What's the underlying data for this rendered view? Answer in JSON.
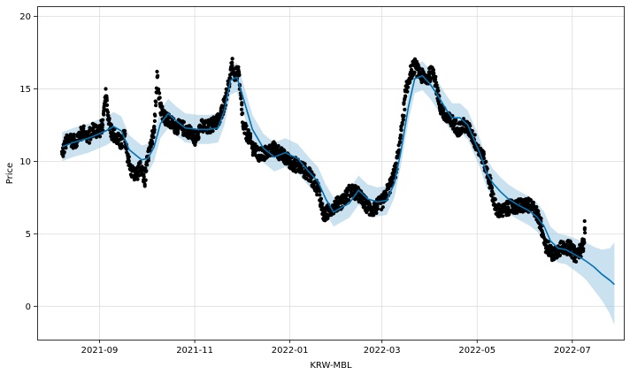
{
  "chart_data": {
    "type": "line",
    "xlabel": "KRW-MBL",
    "ylabel": "Price",
    "xlim": [
      "2021-07-23",
      "2022-08-03"
    ],
    "ylim": [
      -2.3,
      20.7
    ],
    "grid": true,
    "x_ticks": [
      {
        "date": "2021-09-01",
        "label": "2021-09"
      },
      {
        "date": "2021-11-01",
        "label": "2021-11"
      },
      {
        "date": "2022-01-01",
        "label": "2022-01"
      },
      {
        "date": "2022-03-01",
        "label": "2022-03"
      },
      {
        "date": "2022-05-01",
        "label": "2022-05"
      },
      {
        "date": "2022-07-01",
        "label": "2022-07"
      }
    ],
    "y_ticks": [
      0,
      5,
      10,
      15,
      20
    ],
    "colors": {
      "forecast": "#0072B2",
      "band": "#9ec9e2",
      "actual": "#000000",
      "grid": "#dddddd"
    },
    "series": [
      {
        "role": "actual",
        "marker": "dot",
        "x": [
          "2021-08-08",
          "2021-08-10",
          "2021-08-13",
          "2021-08-16",
          "2021-08-19",
          "2021-08-22",
          "2021-08-25",
          "2021-08-28",
          "2021-08-31",
          "2021-09-03",
          "2021-09-05",
          "2021-09-07",
          "2021-09-09",
          "2021-09-12",
          "2021-09-15",
          "2021-09-17",
          "2021-09-19",
          "2021-09-21",
          "2021-09-24",
          "2021-09-27",
          "2021-09-30",
          "2021-10-02",
          "2021-10-04",
          "2021-10-06",
          "2021-10-08",
          "2021-10-10",
          "2021-10-13",
          "2021-10-16",
          "2021-10-20",
          "2021-10-24",
          "2021-10-28",
          "2021-11-01",
          "2021-11-05",
          "2021-11-09",
          "2021-11-13",
          "2021-11-17",
          "2021-11-20",
          "2021-11-23",
          "2021-11-25",
          "2021-11-27",
          "2021-11-29",
          "2021-12-02",
          "2021-12-05",
          "2021-12-08",
          "2021-12-12",
          "2021-12-17",
          "2021-12-22",
          "2021-12-27",
          "2022-01-02",
          "2022-01-08",
          "2022-01-14",
          "2022-01-19",
          "2022-01-23",
          "2022-01-26",
          "2022-01-29",
          "2022-02-03",
          "2022-02-09",
          "2022-02-14",
          "2022-02-18",
          "2022-02-22",
          "2022-02-26",
          "2022-03-02",
          "2022-03-06",
          "2022-03-10",
          "2022-03-13",
          "2022-03-16",
          "2022-03-19",
          "2022-03-22",
          "2022-03-26",
          "2022-03-30",
          "2022-04-03",
          "2022-04-07",
          "2022-04-11",
          "2022-04-15",
          "2022-04-19",
          "2022-04-23",
          "2022-04-27",
          "2022-05-01",
          "2022-05-05",
          "2022-05-09",
          "2022-05-13",
          "2022-05-17",
          "2022-05-21",
          "2022-05-27",
          "2022-06-02",
          "2022-06-07",
          "2022-06-11",
          "2022-06-14",
          "2022-06-18",
          "2022-06-22",
          "2022-06-26",
          "2022-06-30",
          "2022-07-03",
          "2022-07-06",
          "2022-07-08",
          "2022-07-09"
        ],
        "y": [
          10.5,
          11.2,
          11.6,
          11.3,
          11.8,
          12.0,
          11.6,
          12.3,
          12.0,
          12.5,
          14.5,
          12.8,
          12.0,
          11.6,
          11.2,
          11.8,
          10.4,
          9.4,
          9.0,
          9.5,
          8.7,
          10.3,
          11.0,
          12.4,
          15.8,
          13.8,
          13.0,
          12.7,
          12.4,
          12.3,
          12.1,
          11.6,
          12.4,
          12.3,
          12.6,
          12.9,
          14.1,
          15.4,
          16.6,
          15.8,
          16.3,
          12.4,
          11.8,
          11.0,
          10.4,
          10.6,
          10.9,
          10.4,
          9.9,
          9.6,
          9.0,
          8.1,
          6.2,
          6.6,
          6.9,
          7.2,
          8.0,
          7.7,
          7.1,
          6.6,
          6.9,
          7.3,
          8.3,
          9.5,
          11.8,
          14.5,
          16.0,
          16.6,
          15.9,
          15.7,
          16.3,
          13.8,
          13.0,
          12.7,
          12.2,
          12.5,
          12.0,
          11.0,
          10.2,
          8.6,
          6.7,
          6.5,
          6.8,
          6.9,
          7.0,
          6.7,
          5.6,
          4.2,
          3.6,
          3.9,
          4.1,
          4.0,
          3.5,
          3.8,
          4.3,
          5.4
        ]
      },
      {
        "role": "forecast",
        "x": [
          "2021-08-08",
          "2021-08-15",
          "2021-08-25",
          "2021-09-05",
          "2021-09-10",
          "2021-09-15",
          "2021-09-20",
          "2021-09-28",
          "2021-10-02",
          "2021-10-06",
          "2021-10-10",
          "2021-10-15",
          "2021-10-20",
          "2021-10-26",
          "2021-11-03",
          "2021-11-10",
          "2021-11-16",
          "2021-11-20",
          "2021-11-24",
          "2021-11-28",
          "2021-12-02",
          "2021-12-08",
          "2021-12-15",
          "2021-12-22",
          "2021-12-29",
          "2022-01-06",
          "2022-01-13",
          "2022-01-19",
          "2022-01-24",
          "2022-01-29",
          "2022-02-03",
          "2022-02-08",
          "2022-02-14",
          "2022-02-20",
          "2022-02-26",
          "2022-03-04",
          "2022-03-09",
          "2022-03-13",
          "2022-03-18",
          "2022-03-22",
          "2022-03-27",
          "2022-04-01",
          "2022-04-06",
          "2022-04-11",
          "2022-04-15",
          "2022-04-20",
          "2022-04-25",
          "2022-04-29",
          "2022-05-03",
          "2022-05-07",
          "2022-05-11",
          "2022-05-16",
          "2022-05-21",
          "2022-05-27",
          "2022-06-03",
          "2022-06-08",
          "2022-06-13",
          "2022-06-17",
          "2022-06-22",
          "2022-06-27",
          "2022-07-02",
          "2022-07-07",
          "2022-07-10",
          "2022-07-15",
          "2022-07-20",
          "2022-07-25",
          "2022-07-28"
        ],
        "y": [
          11.0,
          11.3,
          11.6,
          12.1,
          12.4,
          12.1,
          10.8,
          10.1,
          10.2,
          11.0,
          12.6,
          13.3,
          12.8,
          12.3,
          12.2,
          12.2,
          12.3,
          13.5,
          15.6,
          15.8,
          14.4,
          12.2,
          10.9,
          10.3,
          10.6,
          10.2,
          9.3,
          8.6,
          7.4,
          6.5,
          6.8,
          7.1,
          8.0,
          7.4,
          7.2,
          7.3,
          8.5,
          10.6,
          13.8,
          15.7,
          15.9,
          15.3,
          14.5,
          13.6,
          13.0,
          13.0,
          12.5,
          11.5,
          10.5,
          9.2,
          8.5,
          7.9,
          7.4,
          7.0,
          6.6,
          6.2,
          5.5,
          4.5,
          4.0,
          3.9,
          3.6,
          3.3,
          3.1,
          2.7,
          2.2,
          1.8,
          1.5
        ]
      },
      {
        "role": "band_upper",
        "x": [
          "2021-08-08",
          "2021-08-15",
          "2021-08-25",
          "2021-09-05",
          "2021-09-10",
          "2021-09-15",
          "2021-09-20",
          "2021-09-28",
          "2021-10-02",
          "2021-10-06",
          "2021-10-10",
          "2021-10-15",
          "2021-10-20",
          "2021-10-26",
          "2021-11-03",
          "2021-11-10",
          "2021-11-16",
          "2021-11-20",
          "2021-11-24",
          "2021-11-28",
          "2021-12-02",
          "2021-12-08",
          "2021-12-15",
          "2021-12-22",
          "2021-12-29",
          "2022-01-06",
          "2022-01-13",
          "2022-01-19",
          "2022-01-24",
          "2022-01-29",
          "2022-02-03",
          "2022-02-08",
          "2022-02-14",
          "2022-02-20",
          "2022-02-26",
          "2022-03-04",
          "2022-03-09",
          "2022-03-13",
          "2022-03-18",
          "2022-03-22",
          "2022-03-27",
          "2022-04-01",
          "2022-04-06",
          "2022-04-11",
          "2022-04-15",
          "2022-04-20",
          "2022-04-25",
          "2022-04-29",
          "2022-05-03",
          "2022-05-07",
          "2022-05-11",
          "2022-05-16",
          "2022-05-21",
          "2022-05-27",
          "2022-06-03",
          "2022-06-08",
          "2022-06-13",
          "2022-06-17",
          "2022-06-22",
          "2022-06-27",
          "2022-07-02",
          "2022-07-07",
          "2022-07-10",
          "2022-07-15",
          "2022-07-20",
          "2022-07-25",
          "2022-07-28"
        ],
        "y": [
          12.0,
          12.3,
          12.6,
          13.1,
          13.4,
          13.1,
          11.8,
          11.1,
          11.2,
          12.0,
          13.6,
          14.3,
          13.8,
          13.3,
          13.2,
          13.2,
          13.3,
          14.5,
          16.6,
          16.8,
          15.4,
          13.2,
          11.9,
          11.3,
          11.6,
          11.2,
          10.3,
          9.6,
          8.4,
          7.5,
          7.8,
          8.1,
          9.0,
          8.4,
          8.2,
          8.3,
          9.5,
          11.6,
          14.8,
          16.7,
          16.9,
          16.3,
          15.5,
          14.6,
          14.0,
          14.0,
          13.5,
          12.5,
          11.5,
          10.2,
          9.5,
          8.9,
          8.4,
          8.0,
          7.6,
          7.2,
          6.5,
          5.5,
          5.0,
          4.9,
          4.7,
          4.5,
          4.4,
          4.1,
          3.9,
          4.0,
          4.4
        ]
      },
      {
        "role": "band_lower",
        "x": [
          "2021-08-08",
          "2021-08-15",
          "2021-08-25",
          "2021-09-05",
          "2021-09-10",
          "2021-09-15",
          "2021-09-20",
          "2021-09-28",
          "2021-10-02",
          "2021-10-06",
          "2021-10-10",
          "2021-10-15",
          "2021-10-20",
          "2021-10-26",
          "2021-11-03",
          "2021-11-10",
          "2021-11-16",
          "2021-11-20",
          "2021-11-24",
          "2021-11-28",
          "2021-12-02",
          "2021-12-08",
          "2021-12-15",
          "2021-12-22",
          "2021-12-29",
          "2022-01-06",
          "2022-01-13",
          "2022-01-19",
          "2022-01-24",
          "2022-01-29",
          "2022-02-03",
          "2022-02-08",
          "2022-02-14",
          "2022-02-20",
          "2022-02-26",
          "2022-03-04",
          "2022-03-09",
          "2022-03-13",
          "2022-03-18",
          "2022-03-22",
          "2022-03-27",
          "2022-04-01",
          "2022-04-06",
          "2022-04-11",
          "2022-04-15",
          "2022-04-20",
          "2022-04-25",
          "2022-04-29",
          "2022-05-03",
          "2022-05-07",
          "2022-05-11",
          "2022-05-16",
          "2022-05-21",
          "2022-05-27",
          "2022-06-03",
          "2022-06-08",
          "2022-06-13",
          "2022-06-17",
          "2022-06-22",
          "2022-06-27",
          "2022-07-02",
          "2022-07-07",
          "2022-07-10",
          "2022-07-15",
          "2022-07-20",
          "2022-07-25",
          "2022-07-28"
        ],
        "y": [
          10.0,
          10.3,
          10.6,
          11.1,
          11.4,
          11.1,
          9.8,
          9.1,
          9.2,
          10.0,
          11.6,
          12.3,
          11.8,
          11.3,
          11.2,
          11.2,
          11.3,
          12.5,
          14.6,
          14.8,
          13.4,
          11.2,
          9.9,
          9.3,
          9.6,
          9.2,
          8.3,
          7.6,
          6.4,
          5.5,
          5.8,
          6.1,
          7.0,
          6.4,
          6.2,
          6.3,
          7.5,
          9.6,
          12.8,
          14.7,
          14.9,
          14.3,
          13.5,
          12.6,
          12.0,
          12.0,
          11.5,
          10.5,
          9.5,
          8.2,
          7.5,
          6.9,
          6.4,
          6.0,
          5.6,
          5.2,
          4.5,
          3.5,
          3.0,
          2.9,
          2.5,
          2.1,
          1.8,
          1.1,
          0.4,
          -0.5,
          -1.3
        ]
      }
    ]
  }
}
